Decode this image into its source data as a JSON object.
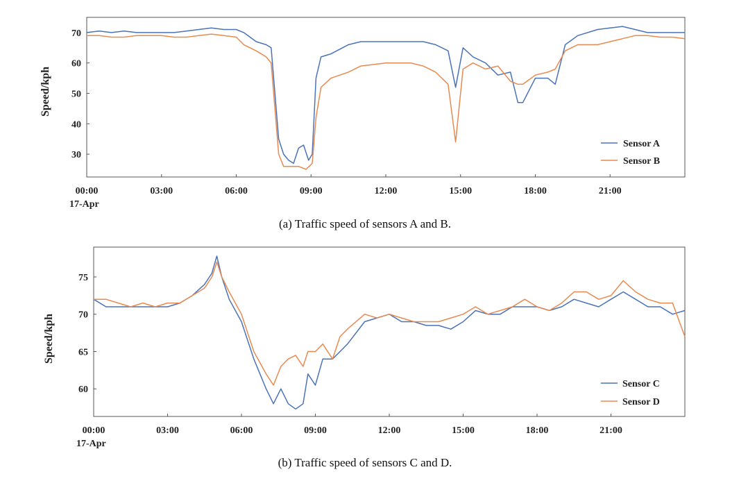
{
  "colors": {
    "blue": "#4a72b8",
    "orange": "#e88a4f",
    "axis": "#555555"
  },
  "chart_data": [
    {
      "type": "line",
      "ylabel": "Speed/kph",
      "ylim": [
        22.5,
        75
      ],
      "yticks": [
        30,
        40,
        50,
        60,
        70
      ],
      "xlim": [
        0,
        24
      ],
      "xticks": [
        0,
        3,
        6,
        9,
        12,
        15,
        18,
        21
      ],
      "xtick_labels": [
        "00:00",
        "03:00",
        "06:00",
        "09:00",
        "12:00",
        "15:00",
        "18:00",
        "21:00"
      ],
      "date_label": "17-Apr",
      "legend_position": "bottom-right",
      "caption": "(a) Traffic speed of sensors A and B.",
      "series": [
        {
          "name": "Sensor A",
          "color": "#4a72b8",
          "points": [
            [
              0,
              70
            ],
            [
              0.5,
              70.5
            ],
            [
              1,
              70
            ],
            [
              1.5,
              70.5
            ],
            [
              2,
              70
            ],
            [
              2.5,
              70
            ],
            [
              3,
              70
            ],
            [
              3.5,
              70
            ],
            [
              4,
              70.5
            ],
            [
              4.5,
              71
            ],
            [
              5,
              71.5
            ],
            [
              5.5,
              71
            ],
            [
              6,
              71
            ],
            [
              6.3,
              70
            ],
            [
              6.8,
              67
            ],
            [
              7.2,
              66
            ],
            [
              7.4,
              65
            ],
            [
              7.55,
              50
            ],
            [
              7.7,
              35
            ],
            [
              7.9,
              30
            ],
            [
              8.1,
              28
            ],
            [
              8.3,
              27
            ],
            [
              8.5,
              32
            ],
            [
              8.7,
              33
            ],
            [
              8.9,
              28
            ],
            [
              9.05,
              30
            ],
            [
              9.2,
              55
            ],
            [
              9.4,
              62
            ],
            [
              9.8,
              63
            ],
            [
              10.5,
              66
            ],
            [
              11,
              67
            ],
            [
              12,
              67
            ],
            [
              13,
              67
            ],
            [
              13.5,
              67
            ],
            [
              14,
              66
            ],
            [
              14.5,
              64
            ],
            [
              14.8,
              52
            ],
            [
              15.1,
              65
            ],
            [
              15.5,
              62
            ],
            [
              16,
              60
            ],
            [
              16.5,
              56
            ],
            [
              17,
              57
            ],
            [
              17.3,
              47
            ],
            [
              17.5,
              47
            ],
            [
              18,
              55
            ],
            [
              18.5,
              55
            ],
            [
              18.8,
              53
            ],
            [
              19.2,
              66
            ],
            [
              19.7,
              69
            ],
            [
              20.5,
              71
            ],
            [
              21,
              71.5
            ],
            [
              21.5,
              72
            ],
            [
              22,
              71
            ],
            [
              22.5,
              70
            ],
            [
              23,
              70
            ],
            [
              23.5,
              70
            ],
            [
              24,
              70
            ]
          ]
        },
        {
          "name": "Sensor B",
          "color": "#e88a4f",
          "points": [
            [
              0,
              69
            ],
            [
              0.5,
              69
            ],
            [
              1,
              68.5
            ],
            [
              1.5,
              68.5
            ],
            [
              2,
              69
            ],
            [
              2.5,
              69
            ],
            [
              3,
              69
            ],
            [
              3.5,
              68.5
            ],
            [
              4,
              68.5
            ],
            [
              4.5,
              69
            ],
            [
              5,
              69.5
            ],
            [
              5.5,
              69
            ],
            [
              6,
              68.5
            ],
            [
              6.3,
              66
            ],
            [
              6.8,
              64
            ],
            [
              7.2,
              62
            ],
            [
              7.4,
              60
            ],
            [
              7.55,
              45
            ],
            [
              7.7,
              30
            ],
            [
              7.9,
              26
            ],
            [
              8.2,
              26
            ],
            [
              8.5,
              26
            ],
            [
              8.8,
              25
            ],
            [
              9.05,
              27
            ],
            [
              9.2,
              42
            ],
            [
              9.4,
              52
            ],
            [
              9.8,
              55
            ],
            [
              10.5,
              57
            ],
            [
              11,
              59
            ],
            [
              12,
              60
            ],
            [
              13,
              60
            ],
            [
              13.5,
              59
            ],
            [
              14,
              57
            ],
            [
              14.5,
              53
            ],
            [
              14.8,
              34
            ],
            [
              15.1,
              58
            ],
            [
              15.5,
              60
            ],
            [
              16,
              58
            ],
            [
              16.5,
              59
            ],
            [
              17,
              54
            ],
            [
              17.3,
              53
            ],
            [
              17.5,
              53
            ],
            [
              18,
              56
            ],
            [
              18.5,
              57
            ],
            [
              18.8,
              58
            ],
            [
              19.2,
              64
            ],
            [
              19.7,
              66
            ],
            [
              20.5,
              66
            ],
            [
              21,
              67
            ],
            [
              21.5,
              68
            ],
            [
              22,
              69
            ],
            [
              22.5,
              69
            ],
            [
              23,
              68.5
            ],
            [
              23.5,
              68.5
            ],
            [
              24,
              68
            ]
          ]
        }
      ]
    },
    {
      "type": "line",
      "ylabel": "Speed/kph",
      "ylim": [
        56.3,
        79
      ],
      "yticks": [
        60,
        65,
        70,
        75
      ],
      "xlim": [
        0,
        24
      ],
      "xticks": [
        0,
        3,
        6,
        9,
        12,
        15,
        18,
        21
      ],
      "xtick_labels": [
        "00:00",
        "03:00",
        "06:00",
        "09:00",
        "12:00",
        "15:00",
        "18:00",
        "21:00"
      ],
      "date_label": "17-Apr",
      "legend_position": "bottom-right",
      "caption": "(b) Traffic speed of sensors C and D.",
      "series": [
        {
          "name": "Sensor C",
          "color": "#4a72b8",
          "points": [
            [
              0,
              72
            ],
            [
              0.5,
              71
            ],
            [
              1,
              71
            ],
            [
              1.5,
              71
            ],
            [
              2,
              71
            ],
            [
              2.5,
              71
            ],
            [
              3,
              71
            ],
            [
              3.5,
              71.5
            ],
            [
              4,
              72.5
            ],
            [
              4.5,
              74
            ],
            [
              4.8,
              75.5
            ],
            [
              5,
              77.8
            ],
            [
              5.2,
              75
            ],
            [
              5.5,
              72
            ],
            [
              6,
              69
            ],
            [
              6.5,
              64
            ],
            [
              7,
              60
            ],
            [
              7.3,
              58
            ],
            [
              7.6,
              60
            ],
            [
              7.9,
              58
            ],
            [
              8.2,
              57.3
            ],
            [
              8.5,
              58
            ],
            [
              8.7,
              62
            ],
            [
              9,
              60.5
            ],
            [
              9.3,
              64
            ],
            [
              9.7,
              64
            ],
            [
              10,
              65
            ],
            [
              10.3,
              66
            ],
            [
              11,
              69
            ],
            [
              11.5,
              69.5
            ],
            [
              12,
              70
            ],
            [
              12.5,
              69
            ],
            [
              13,
              69
            ],
            [
              13.5,
              68.5
            ],
            [
              14,
              68.5
            ],
            [
              14.5,
              68
            ],
            [
              15,
              69
            ],
            [
              15.5,
              70.5
            ],
            [
              16,
              70
            ],
            [
              16.5,
              70
            ],
            [
              17,
              71
            ],
            [
              17.5,
              71
            ],
            [
              18,
              71
            ],
            [
              18.5,
              70.5
            ],
            [
              19,
              71
            ],
            [
              19.5,
              72
            ],
            [
              20,
              71.5
            ],
            [
              20.5,
              71
            ],
            [
              21,
              72
            ],
            [
              21.5,
              73
            ],
            [
              22,
              72
            ],
            [
              22.5,
              71
            ],
            [
              23,
              71
            ],
            [
              23.5,
              70
            ],
            [
              24,
              70.5
            ]
          ]
        },
        {
          "name": "Sensor D",
          "color": "#e88a4f",
          "points": [
            [
              0,
              72
            ],
            [
              0.5,
              72
            ],
            [
              1,
              71.5
            ],
            [
              1.5,
              71
            ],
            [
              2,
              71.5
            ],
            [
              2.5,
              71
            ],
            [
              3,
              71.5
            ],
            [
              3.5,
              71.5
            ],
            [
              4,
              72.5
            ],
            [
              4.5,
              73.5
            ],
            [
              4.8,
              75
            ],
            [
              5,
              77
            ],
            [
              5.2,
              75
            ],
            [
              5.5,
              73
            ],
            [
              6,
              70
            ],
            [
              6.5,
              65
            ],
            [
              7,
              62
            ],
            [
              7.3,
              60.5
            ],
            [
              7.6,
              63
            ],
            [
              7.9,
              64
            ],
            [
              8.2,
              64.5
            ],
            [
              8.5,
              63
            ],
            [
              8.7,
              65
            ],
            [
              9,
              65
            ],
            [
              9.3,
              66
            ],
            [
              9.7,
              64
            ],
            [
              10,
              67
            ],
            [
              10.3,
              68
            ],
            [
              11,
              70
            ],
            [
              11.5,
              69.5
            ],
            [
              12,
              70
            ],
            [
              12.5,
              69.5
            ],
            [
              13,
              69
            ],
            [
              13.5,
              69
            ],
            [
              14,
              69
            ],
            [
              14.5,
              69.5
            ],
            [
              15,
              70
            ],
            [
              15.5,
              71
            ],
            [
              16,
              70
            ],
            [
              16.5,
              70.5
            ],
            [
              17,
              71
            ],
            [
              17.5,
              72
            ],
            [
              18,
              71
            ],
            [
              18.5,
              70.5
            ],
            [
              19,
              71.5
            ],
            [
              19.5,
              73
            ],
            [
              20,
              73
            ],
            [
              20.5,
              72
            ],
            [
              21,
              72.5
            ],
            [
              21.5,
              74.5
            ],
            [
              22,
              73
            ],
            [
              22.5,
              72
            ],
            [
              23,
              71.5
            ],
            [
              23.5,
              71.5
            ],
            [
              24,
              67
            ]
          ]
        }
      ]
    }
  ]
}
